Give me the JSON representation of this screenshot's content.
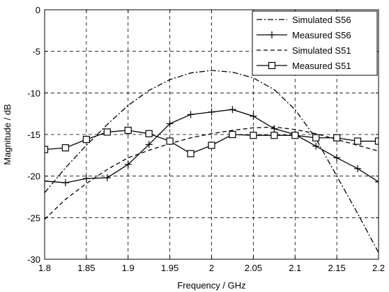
{
  "chart_data": {
    "type": "line",
    "xlabel": "Frequency / GHz",
    "ylabel": "Magnitude / dB",
    "xlim": [
      1.8,
      2.2
    ],
    "ylim": [
      -30,
      0
    ],
    "xticks": [
      "1.8",
      "1.85",
      "1.9",
      "1.95",
      "2",
      "2.05",
      "2.1",
      "2.15",
      "2.2"
    ],
    "yticks": [
      "0",
      "-5",
      "-10",
      "-15",
      "-20",
      "-25",
      "-30"
    ],
    "grid": true,
    "legend_position": "top-right",
    "series": [
      {
        "name": "Simulated S56",
        "line_style": "dash-dot",
        "marker": "none",
        "x": [
          1.8,
          1.825,
          1.85,
          1.875,
          1.9,
          1.925,
          1.95,
          1.975,
          2.0,
          2.025,
          2.05,
          2.075,
          2.1,
          2.125,
          2.15,
          2.175,
          2.2
        ],
        "y": [
          -22.0,
          -19.0,
          -16.3,
          -13.8,
          -11.5,
          -9.7,
          -8.4,
          -7.6,
          -7.3,
          -7.5,
          -8.2,
          -9.6,
          -12.0,
          -15.5,
          -20.0,
          -24.5,
          -29.2
        ]
      },
      {
        "name": "Measured S56",
        "line_style": "solid",
        "marker": "plus",
        "x": [
          1.8,
          1.825,
          1.85,
          1.875,
          1.9,
          1.925,
          1.95,
          1.975,
          2.0,
          2.025,
          2.05,
          2.075,
          2.1,
          2.125,
          2.15,
          2.175,
          2.2
        ],
        "y": [
          -20.6,
          -20.8,
          -20.3,
          -20.2,
          -18.6,
          -16.2,
          -13.7,
          -12.6,
          -12.3,
          -12.0,
          -12.8,
          -14.3,
          -15.0,
          -16.4,
          -17.8,
          -19.1,
          -20.7
        ]
      },
      {
        "name": "Simulated S51",
        "line_style": "dashed",
        "marker": "none",
        "x": [
          1.8,
          1.825,
          1.85,
          1.875,
          1.9,
          1.925,
          1.95,
          1.975,
          2.0,
          2.025,
          2.05,
          2.075,
          2.1,
          2.125,
          2.15,
          2.175,
          2.2
        ],
        "y": [
          -25.2,
          -22.8,
          -20.9,
          -19.2,
          -17.8,
          -16.9,
          -16.1,
          -15.4,
          -14.9,
          -14.5,
          -14.2,
          -14.1,
          -14.4,
          -14.9,
          -15.6,
          -16.3,
          -17.0
        ]
      },
      {
        "name": "Measured S51",
        "line_style": "solid",
        "marker": "square",
        "x": [
          1.8,
          1.825,
          1.85,
          1.875,
          1.9,
          1.925,
          1.95,
          1.975,
          2.0,
          2.025,
          2.05,
          2.075,
          2.1,
          2.125,
          2.15,
          2.175,
          2.2
        ],
        "y": [
          -16.8,
          -16.6,
          -15.6,
          -14.7,
          -14.5,
          -14.9,
          -15.8,
          -17.3,
          -16.3,
          -15.0,
          -15.1,
          -15.1,
          -15.1,
          -15.4,
          -15.4,
          -15.8,
          -15.8
        ]
      }
    ]
  }
}
